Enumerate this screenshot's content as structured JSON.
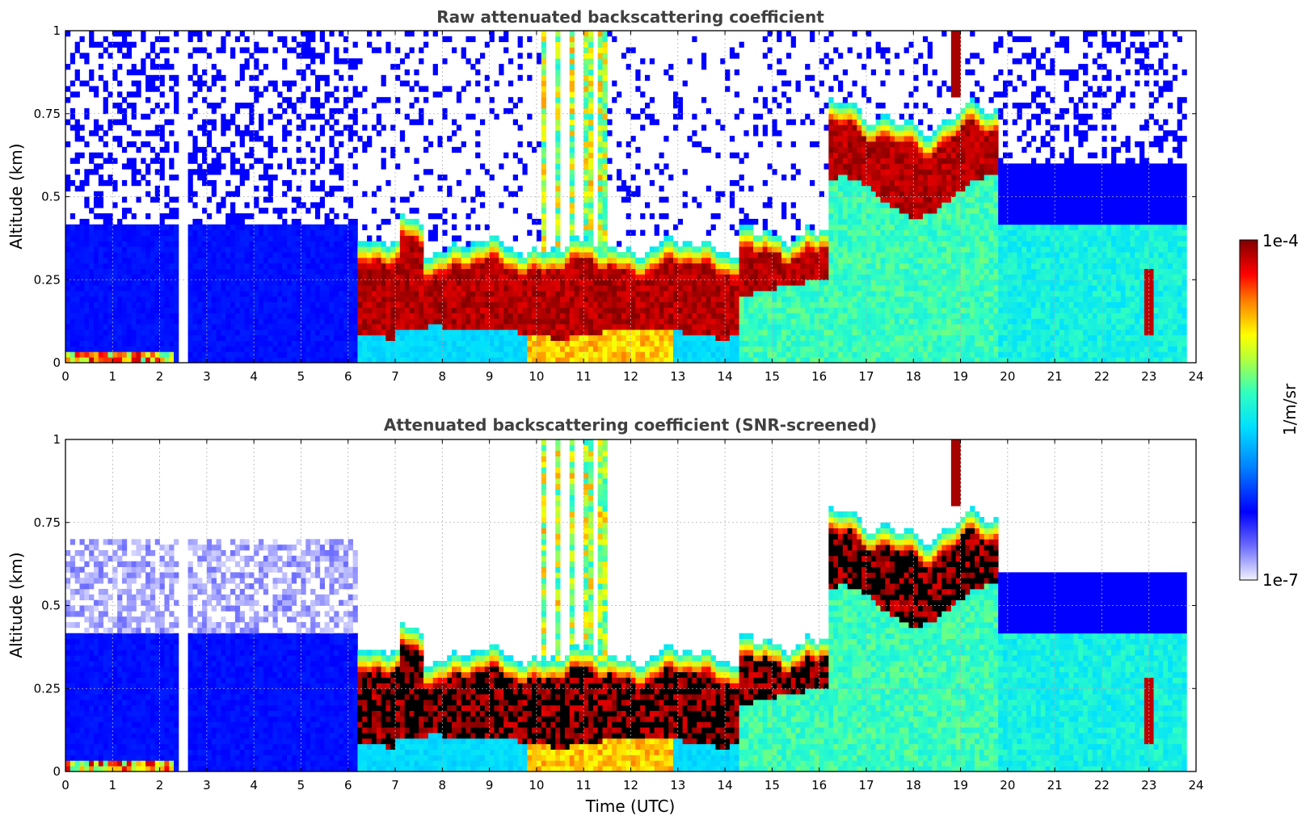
{
  "chart_data": [
    {
      "type": "heatmap",
      "title": "Raw attenuated backscattering coefficient",
      "xlabel": "",
      "ylabel": "Altitude (km)",
      "xlim": [
        0,
        24
      ],
      "ylim": [
        0,
        1
      ],
      "x_ticks": [
        "0",
        "1",
        "2",
        "3",
        "4",
        "5",
        "6",
        "7",
        "8",
        "9",
        "10",
        "11",
        "12",
        "13",
        "14",
        "15",
        "16",
        "17",
        "18",
        "19",
        "20",
        "21",
        "22",
        "23",
        "24"
      ],
      "y_ticks": [
        "0",
        "0.25",
        "0.5",
        "0.75",
        "1"
      ],
      "grid": true,
      "data_gap_hours": [
        2.45,
        2.55
      ],
      "features": [
        {
          "x": [
            0,
            6.2
          ],
          "aerosol_top_km": 0.41,
          "level": "low"
        },
        {
          "x": [
            6.2,
            14.3
          ],
          "cloud_base_km": 0.08,
          "cloud_top_km": 0.33,
          "level": "high"
        },
        {
          "x": [
            10.1,
            11.5
          ],
          "plume_top_km": 1.0,
          "level": "medium"
        },
        {
          "x": [
            14.3,
            16.2
          ],
          "cloud_base_km": 0.25,
          "cloud_top_km": 0.38,
          "level": "high"
        },
        {
          "x": [
            16.2,
            19.8
          ],
          "cloud_base_km": 0.5,
          "cloud_top_km": 0.75,
          "level": "high"
        },
        {
          "x": [
            18.8,
            19.0
          ],
          "cloud_base_km": 0.8,
          "cloud_top_km": 1.0,
          "level": "high"
        },
        {
          "x": [
            22.9,
            23.1
          ],
          "cloud_base_km": 0.08,
          "cloud_top_km": 0.28,
          "level": "high"
        }
      ]
    },
    {
      "type": "heatmap",
      "title": "Attenuated backscattering coefficient (SNR-screened)",
      "xlabel": "Time (UTC)",
      "ylabel": "Altitude (km)",
      "xlim": [
        0,
        24
      ],
      "ylim": [
        0,
        1
      ],
      "x_ticks": [
        "0",
        "1",
        "2",
        "3",
        "4",
        "5",
        "6",
        "7",
        "8",
        "9",
        "10",
        "11",
        "12",
        "13",
        "14",
        "15",
        "16",
        "17",
        "18",
        "19",
        "20",
        "21",
        "22",
        "23",
        "24"
      ],
      "y_ticks": [
        "0",
        "0.25",
        "0.5",
        "0.75",
        "1"
      ],
      "grid": true,
      "data_gap_hours": [
        2.45,
        2.55
      ],
      "screened_color": "#000000"
    }
  ],
  "colorbar": {
    "label": "1/m/sr",
    "max_label": "1e-4",
    "min_label": "1e-7",
    "scale": "log",
    "colormap": [
      "#eeeeff",
      "#0000ff",
      "#00aaff",
      "#00ffee",
      "#aaff44",
      "#ffff00",
      "#ff8800",
      "#ff0000",
      "#800000"
    ]
  }
}
